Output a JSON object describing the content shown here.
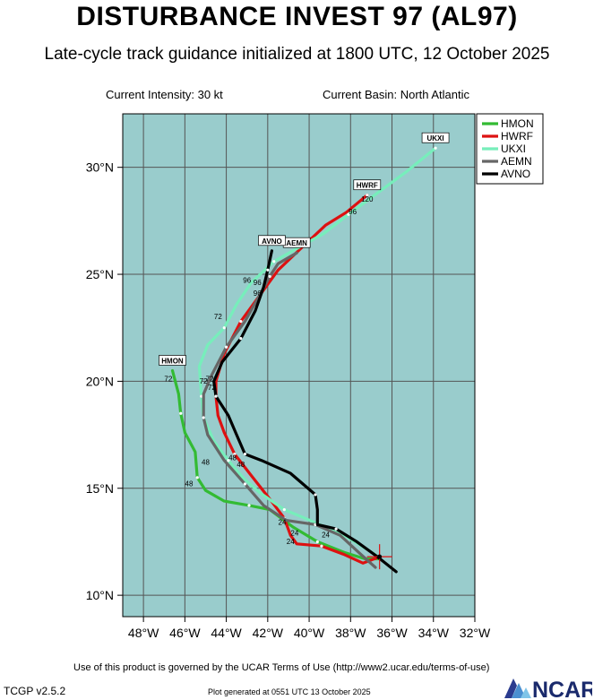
{
  "header": {
    "title": "DISTURBANCE INVEST 97 (AL97)",
    "subtitle": "Late-cycle track guidance initialized at 1800 UTC, 12 October 2025"
  },
  "info": {
    "current_intensity": "Current Intensity: 30 kt",
    "current_basin": "Current Basin: North Atlantic"
  },
  "footer": {
    "terms": "Use of this product is governed by the UCAR Terms of Use (http://www2.ucar.edu/terms-of-use)",
    "version": "TCGP v2.5.2",
    "generated": "Plot generated at 0551 UTC   13 October 2025",
    "logo_text": "NCAR"
  },
  "colors": {
    "ocean": "#99cccc",
    "grid": "#555555",
    "HMON": "#33bb33",
    "HWRF": "#dd1111",
    "UKXI": "#77eebb",
    "AEMN": "#666666",
    "AVNO": "#000000"
  },
  "chart_data": {
    "type": "map",
    "xlim": [
      -49,
      -32
    ],
    "ylim": [
      9,
      32.5
    ],
    "x_ticks": [
      -48,
      -46,
      -44,
      -42,
      -40,
      -38,
      -36,
      -34,
      -32
    ],
    "x_tick_labels": [
      "48°W",
      "46°W",
      "44°W",
      "42°W",
      "40°W",
      "38°W",
      "36°W",
      "34°W",
      "32°W"
    ],
    "y_ticks": [
      10,
      15,
      20,
      25,
      30
    ],
    "y_tick_labels": [
      "10°N",
      "15°N",
      "20°N",
      "25°N",
      "30°N"
    ],
    "gridlines": true,
    "current_position": {
      "lon": -36.6,
      "lat": 11.8
    },
    "legend_position": "top-right",
    "series": [
      {
        "name": "HMON",
        "points": [
          [
            -36.6,
            11.7
          ],
          [
            -37.3,
            11.7
          ],
          [
            -38.3,
            12.0
          ],
          [
            -39.6,
            12.5
          ],
          [
            -40.8,
            13.2
          ],
          [
            -41.9,
            14.0
          ],
          [
            -42.9,
            14.2
          ],
          [
            -44.1,
            14.4
          ],
          [
            -45.0,
            14.9
          ],
          [
            -45.4,
            15.5
          ],
          [
            -45.5,
            16.7
          ],
          [
            -46.0,
            17.6
          ],
          [
            -46.2,
            18.5
          ],
          [
            -46.3,
            19.4
          ],
          [
            -46.6,
            20.5
          ]
        ],
        "labels": [
          {
            "text": "24",
            "lon": -40.9,
            "lat": 12.4
          },
          {
            "text": "48",
            "lon": -45.8,
            "lat": 15.1
          },
          {
            "text": "72",
            "lon": -46.8,
            "lat": 20.0
          }
        ],
        "end_label": "HMON"
      },
      {
        "name": "HWRF",
        "points": [
          [
            -36.6,
            11.8
          ],
          [
            -37.4,
            11.5
          ],
          [
            -38.3,
            11.9
          ],
          [
            -39.4,
            12.3
          ],
          [
            -40.6,
            12.4
          ],
          [
            -40.9,
            12.8
          ],
          [
            -41.2,
            13.6
          ],
          [
            -41.9,
            14.5
          ],
          [
            -42.8,
            15.6
          ],
          [
            -43.6,
            16.6
          ],
          [
            -44.1,
            17.6
          ],
          [
            -44.4,
            18.4
          ],
          [
            -44.5,
            19.3
          ],
          [
            -44.5,
            20.0
          ],
          [
            -44.1,
            21.3
          ],
          [
            -43.3,
            22.8
          ],
          [
            -42.4,
            24.0
          ],
          [
            -41.5,
            25.2
          ],
          [
            -40.3,
            26.3
          ],
          [
            -39.2,
            27.3
          ],
          [
            -38.2,
            27.9
          ],
          [
            -37.2,
            28.7
          ]
        ],
        "labels": [
          {
            "text": "24",
            "lon": -41.3,
            "lat": 13.3
          },
          {
            "text": "48",
            "lon": -43.7,
            "lat": 16.3
          },
          {
            "text": "72",
            "lon": -44.8,
            "lat": 20.0
          },
          {
            "text": "96",
            "lon": -42.5,
            "lat": 24.0
          },
          {
            "text": "96",
            "lon": -37.9,
            "lat": 27.8
          },
          {
            "text": "120",
            "lon": -37.2,
            "lat": 28.4
          }
        ],
        "end_label": "HWRF"
      },
      {
        "name": "UKXI",
        "points": [
          [
            -36.8,
            11.9
          ],
          [
            -38.3,
            12.8
          ],
          [
            -40.2,
            13.6
          ],
          [
            -41.2,
            14.0
          ],
          [
            -42.4,
            14.8
          ],
          [
            -43.2,
            15.5
          ],
          [
            -43.9,
            16.3
          ],
          [
            -44.6,
            17.2
          ],
          [
            -45.1,
            18.3
          ],
          [
            -45.2,
            19.3
          ],
          [
            -45.3,
            20.7
          ],
          [
            -44.9,
            21.7
          ],
          [
            -44.1,
            22.5
          ],
          [
            -43.5,
            23.6
          ],
          [
            -42.8,
            24.6
          ],
          [
            -41.7,
            25.6
          ],
          [
            -40.6,
            26.2
          ],
          [
            -39.3,
            26.9
          ],
          [
            -38.1,
            27.8
          ],
          [
            -36.7,
            28.8
          ],
          [
            -35.3,
            29.8
          ],
          [
            -33.9,
            30.9
          ]
        ],
        "labels": [
          {
            "text": "72",
            "lon": -44.4,
            "lat": 22.9
          }
        ],
        "end_label": "UKXI"
      },
      {
        "name": "AEMN",
        "points": [
          [
            -36.8,
            11.3
          ],
          [
            -37.6,
            12.0
          ],
          [
            -38.5,
            12.8
          ],
          [
            -39.7,
            13.3
          ],
          [
            -41.1,
            13.5
          ],
          [
            -42.2,
            14.2
          ],
          [
            -43.1,
            15.2
          ],
          [
            -44.1,
            16.3
          ],
          [
            -44.9,
            17.5
          ],
          [
            -45.1,
            18.3
          ],
          [
            -45.1,
            19.4
          ],
          [
            -44.7,
            20.3
          ],
          [
            -44.0,
            21.6
          ],
          [
            -43.1,
            22.8
          ],
          [
            -42.4,
            24.0
          ],
          [
            -41.9,
            24.9
          ],
          [
            -41.5,
            25.5
          ],
          [
            -40.6,
            26.0
          ]
        ],
        "labels": [
          {
            "text": "24",
            "lon": -40.7,
            "lat": 12.8
          },
          {
            "text": "48",
            "lon": -45.0,
            "lat": 16.1
          },
          {
            "text": "72",
            "lon": -45.1,
            "lat": 19.9
          },
          {
            "text": "96",
            "lon": -43.0,
            "lat": 24.6
          }
        ],
        "end_label": "AEMN"
      },
      {
        "name": "AVNO",
        "points": [
          [
            -35.8,
            11.1
          ],
          [
            -36.7,
            11.8
          ],
          [
            -37.7,
            12.5
          ],
          [
            -38.7,
            13.1
          ],
          [
            -39.6,
            13.3
          ],
          [
            -39.6,
            14.0
          ],
          [
            -39.7,
            14.7
          ],
          [
            -40.9,
            15.7
          ],
          [
            -42.3,
            16.3
          ],
          [
            -43.1,
            16.6
          ],
          [
            -43.5,
            17.5
          ],
          [
            -43.9,
            18.4
          ],
          [
            -44.5,
            19.3
          ],
          [
            -44.6,
            20.0
          ],
          [
            -44.2,
            20.9
          ],
          [
            -43.3,
            22.0
          ],
          [
            -42.6,
            23.3
          ],
          [
            -42.2,
            24.4
          ],
          [
            -42.0,
            25.2
          ],
          [
            -41.8,
            26.1
          ]
        ],
        "labels": [
          {
            "text": "24",
            "lon": -39.2,
            "lat": 12.7
          },
          {
            "text": "48",
            "lon": -43.3,
            "lat": 16.0
          },
          {
            "text": "72",
            "lon": -44.7,
            "lat": 19.6
          },
          {
            "text": "96",
            "lon": -42.5,
            "lat": 24.5
          }
        ],
        "end_label": "AVNO"
      }
    ]
  }
}
